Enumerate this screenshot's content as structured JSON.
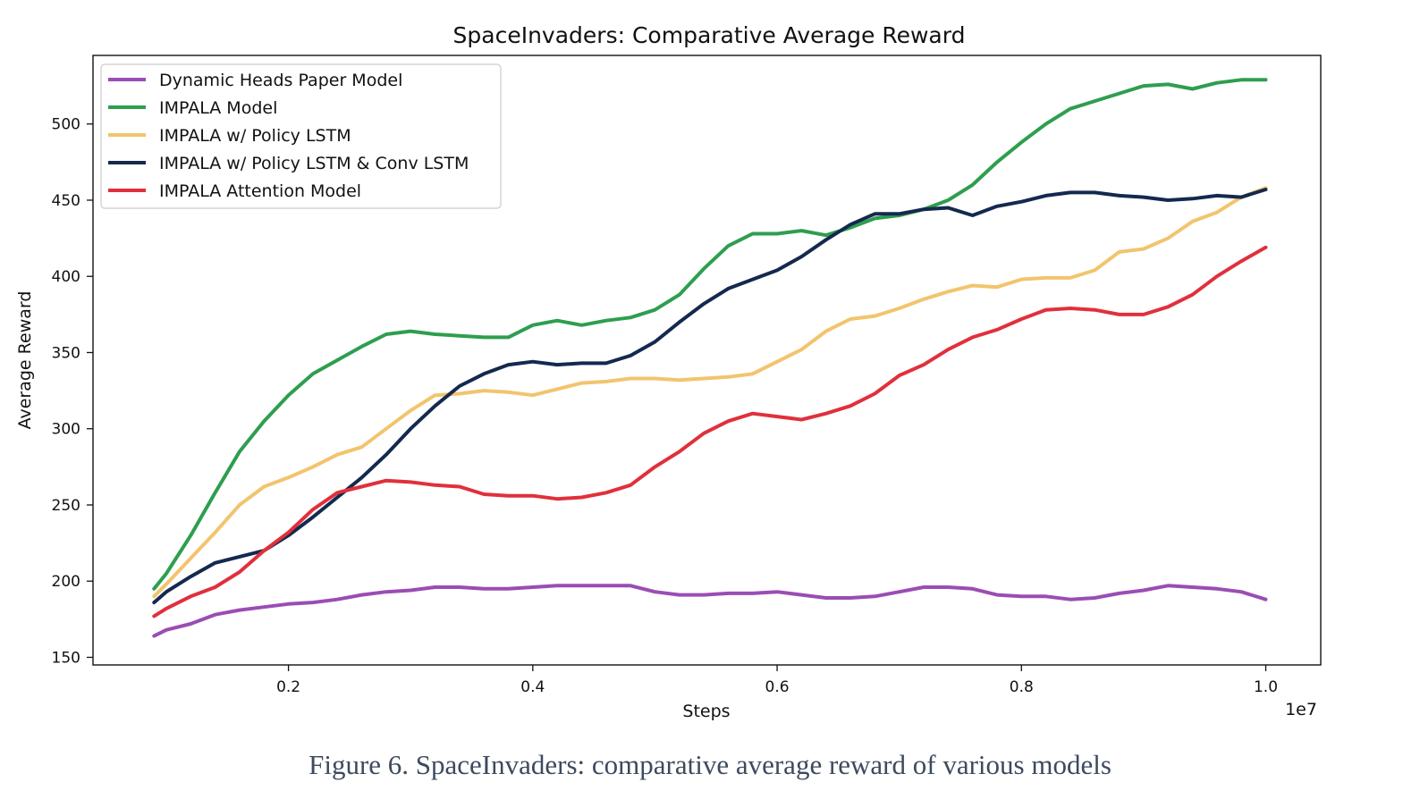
{
  "caption": "Figure 6. SpaceInvaders: comparative average reward of various models",
  "chart_data": {
    "type": "line",
    "title": "SpaceInvaders: Comparative Average Reward",
    "xlabel": "Steps",
    "ylabel": "Average Reward",
    "x_offset_label": "1e7",
    "xlim": [
      0.04,
      1.045
    ],
    "ylim": [
      145,
      545
    ],
    "x_ticks": [
      0.2,
      0.4,
      0.6,
      0.8,
      1.0
    ],
    "x_tick_labels": [
      "0.2",
      "0.4",
      "0.6",
      "0.8",
      "1.0"
    ],
    "y_ticks": [
      150,
      200,
      250,
      300,
      350,
      400,
      450,
      500
    ],
    "y_tick_labels": [
      "150",
      "200",
      "250",
      "300",
      "350",
      "400",
      "450",
      "500"
    ],
    "grid": false,
    "legend_position": "top-left",
    "series": [
      {
        "name": "Dynamic Heads Paper Model",
        "color": "#9b4db3",
        "points": [
          [
            0.09,
            164
          ],
          [
            0.1,
            168
          ],
          [
            0.12,
            172
          ],
          [
            0.14,
            178
          ],
          [
            0.16,
            181
          ],
          [
            0.18,
            183
          ],
          [
            0.2,
            185
          ],
          [
            0.22,
            186
          ],
          [
            0.24,
            188
          ],
          [
            0.26,
            191
          ],
          [
            0.28,
            193
          ],
          [
            0.3,
            194
          ],
          [
            0.32,
            196
          ],
          [
            0.34,
            196
          ],
          [
            0.36,
            195
          ],
          [
            0.38,
            195
          ],
          [
            0.4,
            196
          ],
          [
            0.42,
            197
          ],
          [
            0.44,
            197
          ],
          [
            0.46,
            197
          ],
          [
            0.48,
            197
          ],
          [
            0.5,
            193
          ],
          [
            0.52,
            191
          ],
          [
            0.54,
            191
          ],
          [
            0.56,
            192
          ],
          [
            0.58,
            192
          ],
          [
            0.6,
            193
          ],
          [
            0.62,
            191
          ],
          [
            0.64,
            189
          ],
          [
            0.66,
            189
          ],
          [
            0.68,
            190
          ],
          [
            0.7,
            193
          ],
          [
            0.72,
            196
          ],
          [
            0.74,
            196
          ],
          [
            0.76,
            195
          ],
          [
            0.78,
            191
          ],
          [
            0.8,
            190
          ],
          [
            0.82,
            190
          ],
          [
            0.84,
            188
          ],
          [
            0.86,
            189
          ],
          [
            0.88,
            192
          ],
          [
            0.9,
            194
          ],
          [
            0.92,
            197
          ],
          [
            0.94,
            196
          ],
          [
            0.96,
            195
          ],
          [
            0.98,
            193
          ],
          [
            1.0,
            188
          ]
        ]
      },
      {
        "name": "IMPALA Model",
        "color": "#2e9e4f",
        "points": [
          [
            0.09,
            195
          ],
          [
            0.1,
            205
          ],
          [
            0.12,
            230
          ],
          [
            0.14,
            258
          ],
          [
            0.16,
            285
          ],
          [
            0.18,
            305
          ],
          [
            0.2,
            322
          ],
          [
            0.22,
            336
          ],
          [
            0.24,
            345
          ],
          [
            0.26,
            354
          ],
          [
            0.28,
            362
          ],
          [
            0.3,
            364
          ],
          [
            0.32,
            362
          ],
          [
            0.34,
            361
          ],
          [
            0.36,
            360
          ],
          [
            0.38,
            360
          ],
          [
            0.4,
            368
          ],
          [
            0.42,
            371
          ],
          [
            0.44,
            368
          ],
          [
            0.46,
            371
          ],
          [
            0.48,
            373
          ],
          [
            0.5,
            378
          ],
          [
            0.52,
            388
          ],
          [
            0.54,
            405
          ],
          [
            0.56,
            420
          ],
          [
            0.58,
            428
          ],
          [
            0.6,
            428
          ],
          [
            0.62,
            430
          ],
          [
            0.64,
            427
          ],
          [
            0.66,
            432
          ],
          [
            0.68,
            438
          ],
          [
            0.7,
            440
          ],
          [
            0.72,
            444
          ],
          [
            0.74,
            450
          ],
          [
            0.76,
            460
          ],
          [
            0.78,
            475
          ],
          [
            0.8,
            488
          ],
          [
            0.82,
            500
          ],
          [
            0.84,
            510
          ],
          [
            0.86,
            515
          ],
          [
            0.88,
            520
          ],
          [
            0.9,
            525
          ],
          [
            0.92,
            526
          ],
          [
            0.94,
            523
          ],
          [
            0.96,
            527
          ],
          [
            0.98,
            529
          ],
          [
            1.0,
            529
          ]
        ]
      },
      {
        "name": "IMPALA w/ Policy LSTM",
        "color": "#f2c46d",
        "points": [
          [
            0.09,
            190
          ],
          [
            0.1,
            198
          ],
          [
            0.12,
            215
          ],
          [
            0.14,
            232
          ],
          [
            0.16,
            250
          ],
          [
            0.18,
            262
          ],
          [
            0.2,
            268
          ],
          [
            0.22,
            275
          ],
          [
            0.24,
            283
          ],
          [
            0.26,
            288
          ],
          [
            0.28,
            300
          ],
          [
            0.3,
            312
          ],
          [
            0.32,
            322
          ],
          [
            0.34,
            323
          ],
          [
            0.36,
            325
          ],
          [
            0.38,
            324
          ],
          [
            0.4,
            322
          ],
          [
            0.42,
            326
          ],
          [
            0.44,
            330
          ],
          [
            0.46,
            331
          ],
          [
            0.48,
            333
          ],
          [
            0.5,
            333
          ],
          [
            0.52,
            332
          ],
          [
            0.54,
            333
          ],
          [
            0.56,
            334
          ],
          [
            0.58,
            336
          ],
          [
            0.6,
            344
          ],
          [
            0.62,
            352
          ],
          [
            0.64,
            364
          ],
          [
            0.66,
            372
          ],
          [
            0.68,
            374
          ],
          [
            0.7,
            379
          ],
          [
            0.72,
            385
          ],
          [
            0.74,
            390
          ],
          [
            0.76,
            394
          ],
          [
            0.78,
            393
          ],
          [
            0.8,
            398
          ],
          [
            0.82,
            399
          ],
          [
            0.84,
            399
          ],
          [
            0.86,
            404
          ],
          [
            0.88,
            416
          ],
          [
            0.9,
            418
          ],
          [
            0.92,
            425
          ],
          [
            0.94,
            436
          ],
          [
            0.96,
            442
          ],
          [
            0.98,
            452
          ],
          [
            1.0,
            458
          ]
        ]
      },
      {
        "name": "IMPALA w/ Policy LSTM & Conv LSTM",
        "color": "#14294f",
        "points": [
          [
            0.09,
            186
          ],
          [
            0.1,
            193
          ],
          [
            0.12,
            203
          ],
          [
            0.14,
            212
          ],
          [
            0.16,
            216
          ],
          [
            0.18,
            220
          ],
          [
            0.2,
            230
          ],
          [
            0.22,
            242
          ],
          [
            0.24,
            255
          ],
          [
            0.26,
            268
          ],
          [
            0.28,
            283
          ],
          [
            0.3,
            300
          ],
          [
            0.32,
            315
          ],
          [
            0.34,
            328
          ],
          [
            0.36,
            336
          ],
          [
            0.38,
            342
          ],
          [
            0.4,
            344
          ],
          [
            0.42,
            342
          ],
          [
            0.44,
            343
          ],
          [
            0.46,
            343
          ],
          [
            0.48,
            348
          ],
          [
            0.5,
            357
          ],
          [
            0.52,
            370
          ],
          [
            0.54,
            382
          ],
          [
            0.56,
            392
          ],
          [
            0.58,
            398
          ],
          [
            0.6,
            404
          ],
          [
            0.62,
            413
          ],
          [
            0.64,
            424
          ],
          [
            0.66,
            434
          ],
          [
            0.68,
            441
          ],
          [
            0.7,
            441
          ],
          [
            0.72,
            444
          ],
          [
            0.74,
            445
          ],
          [
            0.76,
            440
          ],
          [
            0.78,
            446
          ],
          [
            0.8,
            449
          ],
          [
            0.82,
            453
          ],
          [
            0.84,
            455
          ],
          [
            0.86,
            455
          ],
          [
            0.88,
            453
          ],
          [
            0.9,
            452
          ],
          [
            0.92,
            450
          ],
          [
            0.94,
            451
          ],
          [
            0.96,
            453
          ],
          [
            0.98,
            452
          ],
          [
            1.0,
            457
          ]
        ]
      },
      {
        "name": "IMPALA Attention Model",
        "color": "#e0303c",
        "points": [
          [
            0.09,
            177
          ],
          [
            0.1,
            182
          ],
          [
            0.12,
            190
          ],
          [
            0.14,
            196
          ],
          [
            0.16,
            206
          ],
          [
            0.18,
            220
          ],
          [
            0.2,
            232
          ],
          [
            0.22,
            247
          ],
          [
            0.24,
            258
          ],
          [
            0.26,
            262
          ],
          [
            0.28,
            266
          ],
          [
            0.3,
            265
          ],
          [
            0.32,
            263
          ],
          [
            0.34,
            262
          ],
          [
            0.36,
            257
          ],
          [
            0.38,
            256
          ],
          [
            0.4,
            256
          ],
          [
            0.42,
            254
          ],
          [
            0.44,
            255
          ],
          [
            0.46,
            258
          ],
          [
            0.48,
            263
          ],
          [
            0.5,
            275
          ],
          [
            0.52,
            285
          ],
          [
            0.54,
            297
          ],
          [
            0.56,
            305
          ],
          [
            0.58,
            310
          ],
          [
            0.6,
            308
          ],
          [
            0.62,
            306
          ],
          [
            0.64,
            310
          ],
          [
            0.66,
            315
          ],
          [
            0.68,
            323
          ],
          [
            0.7,
            335
          ],
          [
            0.72,
            342
          ],
          [
            0.74,
            352
          ],
          [
            0.76,
            360
          ],
          [
            0.78,
            365
          ],
          [
            0.8,
            372
          ],
          [
            0.82,
            378
          ],
          [
            0.84,
            379
          ],
          [
            0.86,
            378
          ],
          [
            0.88,
            375
          ],
          [
            0.9,
            375
          ],
          [
            0.92,
            380
          ],
          [
            0.94,
            388
          ],
          [
            0.96,
            400
          ],
          [
            0.98,
            410
          ],
          [
            1.0,
            419
          ]
        ]
      }
    ]
  }
}
